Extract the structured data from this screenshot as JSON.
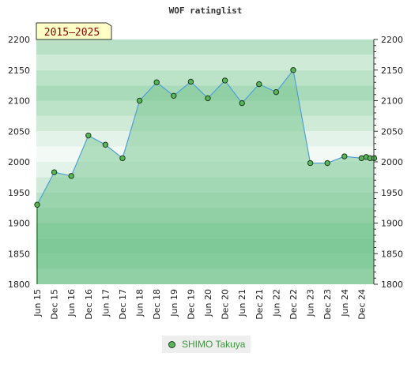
{
  "chart_data": {
    "type": "area",
    "title": "WOF ratinglist",
    "period_badge": "2015–2025",
    "ylim": [
      1800,
      2200
    ],
    "yticks": [
      1800,
      1850,
      1900,
      1950,
      2000,
      2050,
      2100,
      2150,
      2200
    ],
    "x_tick_labels": [
      "Jun 15",
      "Dec 15",
      "Jun 16",
      "Dec 16",
      "Jun 17",
      "Dec 17",
      "Jun 18",
      "Dec 18",
      "Jun 19",
      "Dec 19",
      "Jun 20",
      "Dec 20",
      "Jun 21",
      "Dec 21",
      "Jun 22",
      "Dec 22",
      "Jun 23",
      "Dec 23",
      "Jun 24",
      "Dec 24"
    ],
    "legend_position": "bottom",
    "grid": true,
    "colors": {
      "fill": "#7dc896",
      "line": "#4fa0d8",
      "point": "#5ab45a",
      "band_dark": "#7fc99a",
      "band_light": "#f3faf5"
    },
    "series": [
      {
        "name": "SHIMO Takuya",
        "points": [
          [
            "Jun 15",
            1930
          ],
          [
            "Dec 15",
            1983
          ],
          [
            "Jun 16",
            1977
          ],
          [
            "Dec 16",
            2043
          ],
          [
            "Jun 17",
            2028
          ],
          [
            "Dec 17",
            2006
          ],
          [
            "Jun 18",
            2100
          ],
          [
            "Dec 18",
            2130
          ],
          [
            "Jun 19",
            2108
          ],
          [
            "Dec 19",
            2131
          ],
          [
            "Jun 20",
            2104
          ],
          [
            "Dec 20",
            2133
          ],
          [
            "Jun 21",
            2096
          ],
          [
            "Dec 21",
            2127
          ],
          [
            "Jun 22",
            2114
          ],
          [
            "Dec 22",
            2150
          ],
          [
            "Jun 23",
            1998
          ],
          [
            "Dec 23",
            1998
          ],
          [
            "Jun 24",
            2009
          ],
          [
            "Dec 24",
            2006
          ]
        ],
        "trailing_values": [
          2008,
          2006,
          2006
        ]
      }
    ]
  },
  "legend": {
    "series_label": "SHIMO Takuya"
  }
}
